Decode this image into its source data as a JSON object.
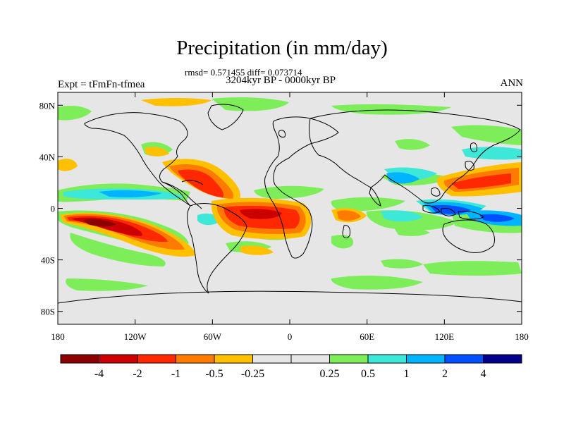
{
  "title": "Precipitation (in mm/day)",
  "stats": "rmsd= 0.571455  diff= 0.073714",
  "period": "3204kyr BP - 0000kyr BP",
  "experiment": "Expt = tFmFn-tfmea",
  "season": "ANN",
  "map": {
    "lat_ticks": [
      "80N",
      "40N",
      "0",
      "40S",
      "80S"
    ],
    "lon_ticks": [
      "180",
      "120W",
      "60W",
      "0",
      "60E",
      "120E",
      "180"
    ],
    "background_color": "#e6e6e6"
  },
  "colorbar": {
    "colors": [
      "#8b0000",
      "#cd0000",
      "#ff2800",
      "#ff7b00",
      "#ffc000",
      "#e6e6e6",
      "#e6e6e6",
      "#7dee5a",
      "#3ee8d8",
      "#00b4ff",
      "#0050ff",
      "#00008b"
    ],
    "labels": [
      "-4",
      "-2",
      "-1",
      "-0.5",
      "-0.25",
      "0.25",
      "0.5",
      "1",
      "2",
      "4"
    ]
  }
}
